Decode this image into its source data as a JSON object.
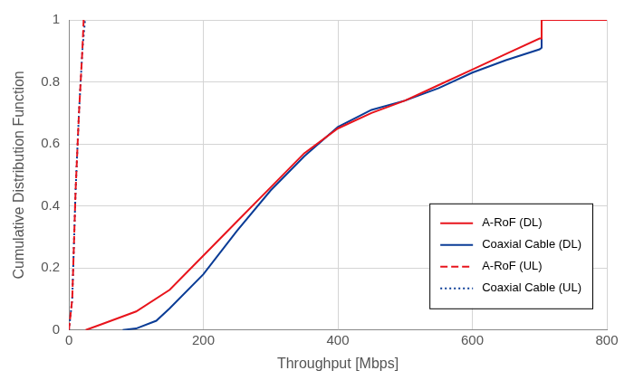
{
  "chart_data": {
    "type": "line",
    "x_label": "Throughput [Mbps]",
    "y_label": "Cumulative Distribution Function",
    "xlim": [
      0,
      800
    ],
    "xticks": [
      0,
      200,
      400,
      600,
      800
    ],
    "ylim": [
      0,
      1
    ],
    "yticks": [
      0,
      0.2,
      0.4,
      0.6,
      0.8,
      1
    ],
    "grid": true,
    "legend": "lower right",
    "series": [
      {
        "name": "A-RoF (DL)",
        "color": "#e8141c",
        "line_style": "solid",
        "x": [
          25,
          50,
          100,
          150,
          200,
          250,
          300,
          350,
          400,
          450,
          500,
          550,
          600,
          650,
          700,
          703,
          703,
          800
        ],
        "values": [
          0,
          0.02,
          0.06,
          0.13,
          0.24,
          0.35,
          0.46,
          0.57,
          0.65,
          0.7,
          0.74,
          0.79,
          0.84,
          0.89,
          0.94,
          0.94,
          1,
          1
        ]
      },
      {
        "name": "Coaxial Cable (DL)",
        "color": "#0a3c96",
        "line_style": "solid",
        "x": [
          80,
          100,
          130,
          150,
          200,
          250,
          300,
          350,
          400,
          450,
          500,
          550,
          600,
          650,
          700,
          703,
          703,
          800
        ],
        "values": [
          0,
          0.005,
          0.03,
          0.07,
          0.18,
          0.32,
          0.45,
          0.56,
          0.655,
          0.71,
          0.74,
          0.78,
          0.83,
          0.87,
          0.905,
          0.91,
          1,
          1
        ]
      },
      {
        "name": "A-RoF (UL)",
        "color": "#e8141c",
        "line_style": "dashed",
        "x": [
          0,
          5,
          10,
          15,
          20,
          22
        ],
        "values": [
          0,
          0.1,
          0.45,
          0.7,
          0.9,
          1
        ]
      },
      {
        "name": "Coaxial Cable (UL)",
        "color": "#0a3c96",
        "line_style": "dotted",
        "x": [
          0,
          5,
          10,
          15,
          20,
          24
        ],
        "values": [
          0,
          0.1,
          0.45,
          0.7,
          0.9,
          1
        ]
      }
    ]
  }
}
